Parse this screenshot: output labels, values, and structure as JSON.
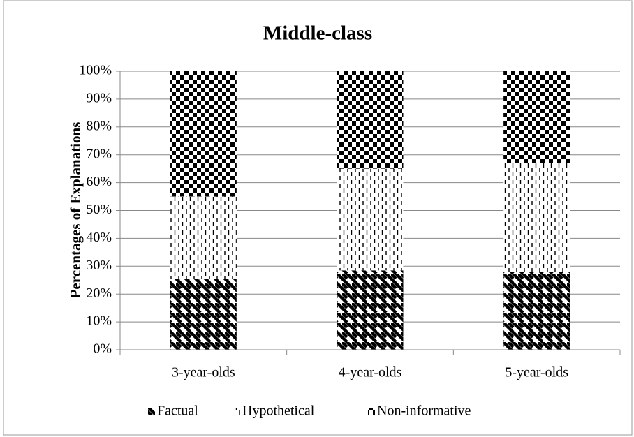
{
  "chart_data": {
    "type": "bar",
    "stacked": true,
    "title": "Middle-class",
    "y_label": "Percentages of Explanations",
    "categories": [
      "3-year-olds",
      "4-year-olds",
      "5-year-olds"
    ],
    "series": [
      {
        "name": "Factual",
        "color": "#000000",
        "values": [
          25.5,
          28.5,
          28
        ]
      },
      {
        "name": "Hypothetical",
        "color": "#000000",
        "values": [
          29.5,
          36.5,
          39
        ]
      },
      {
        "name": "Non-informative",
        "color": "#000000",
        "values": [
          45,
          35,
          33
        ]
      }
    ],
    "ylim": [
      0,
      100
    ],
    "yticks": [
      {
        "value": 0,
        "label": "0%"
      },
      {
        "value": 10,
        "label": "10%"
      },
      {
        "value": 20,
        "label": "20%"
      },
      {
        "value": 30,
        "label": "30%"
      },
      {
        "value": 40,
        "label": "40%"
      },
      {
        "value": 50,
        "label": "50%"
      },
      {
        "value": 60,
        "label": "60%"
      },
      {
        "value": 70,
        "label": "70%"
      },
      {
        "value": 80,
        "label": "80%"
      },
      {
        "value": 90,
        "label": "90%"
      },
      {
        "value": 100,
        "label": "100%"
      }
    ],
    "grid": true,
    "legend": "bottom"
  }
}
